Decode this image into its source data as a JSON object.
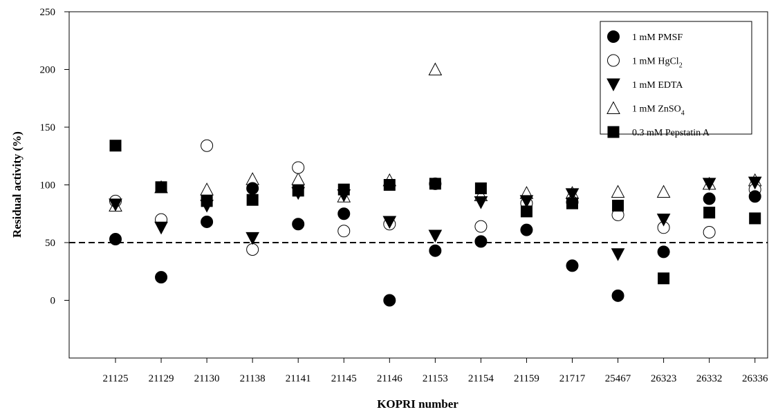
{
  "chart_data": {
    "type": "scatter",
    "title": "",
    "xlabel": "KOPRI number",
    "ylabel": "Residual activity (%)",
    "categories": [
      "21125",
      "21129",
      "21130",
      "21138",
      "21141",
      "21145",
      "21146",
      "21153",
      "21154",
      "21159",
      "21717",
      "25467",
      "26323",
      "26332",
      "26336"
    ],
    "ylim": [
      -50,
      250
    ],
    "yticks": [
      0,
      50,
      100,
      150,
      200,
      250
    ],
    "grid": false,
    "legend_position": "top-right",
    "reference_line": {
      "y": 50,
      "style": "dashed"
    },
    "series": [
      {
        "name": "1 mM PMSF",
        "marker": "circle-filled",
        "values": [
          53,
          20,
          68,
          97,
          66,
          75,
          0,
          43,
          51,
          61,
          30,
          4,
          42,
          88,
          90
        ]
      },
      {
        "name": "1 mM HgCl2",
        "marker": "circle-open",
        "values": [
          86,
          70,
          134,
          44,
          115,
          60,
          66,
          101,
          64,
          84,
          85,
          74,
          63,
          59,
          96
        ]
      },
      {
        "name": "1 mM EDTA",
        "marker": "triangle-down-filled",
        "values": [
          83,
          63,
          82,
          54,
          93,
          91,
          68,
          56,
          85,
          86,
          92,
          40,
          70,
          101,
          102
        ]
      },
      {
        "name": "1 mM ZnSO4",
        "marker": "triangle-up-open",
        "values": [
          82,
          98,
          96,
          105,
          105,
          90,
          104,
          200,
          91,
          93,
          93,
          94,
          94,
          101,
          104
        ]
      },
      {
        "name": "0.3 mM Pepstatin A",
        "marker": "square-filled",
        "values": [
          134,
          98,
          86,
          87,
          95,
          96,
          100,
          101,
          97,
          77,
          84,
          82,
          19,
          76,
          71
        ]
      }
    ]
  }
}
